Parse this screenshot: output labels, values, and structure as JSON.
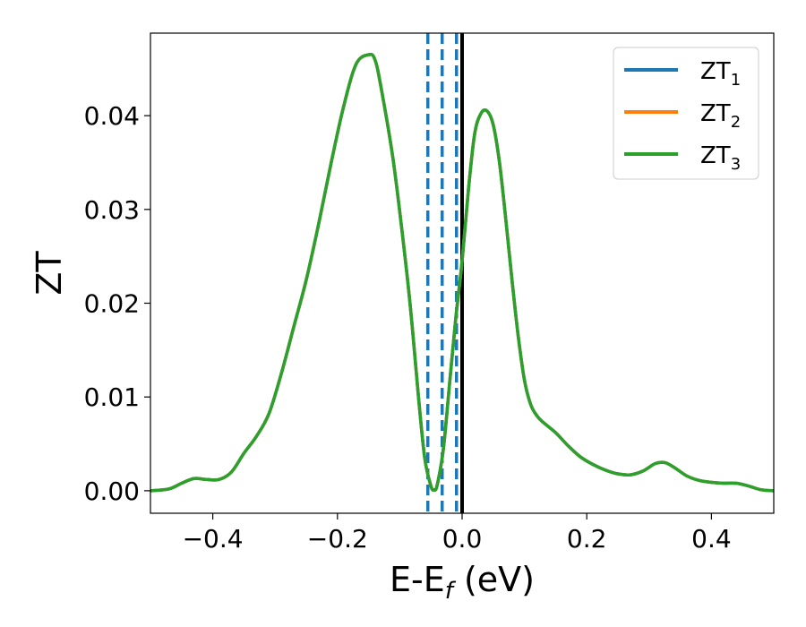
{
  "chart_data": {
    "type": "line",
    "xlabel": "E-E",
    "xlabel_sub": "f",
    "xlabel_unit": " (eV)",
    "ylabel": "ZT",
    "xlim": [
      -0.5,
      0.5
    ],
    "ylim": [
      -0.0024,
      0.0488
    ],
    "xticks": [
      -0.4,
      -0.2,
      0.0,
      0.2,
      0.4
    ],
    "xtick_labels": [
      "−0.4",
      "−0.2",
      "0.0",
      "0.2",
      "0.4"
    ],
    "yticks": [
      0.0,
      0.01,
      0.02,
      0.03,
      0.04
    ],
    "ytick_labels": [
      "0.00",
      "0.01",
      "0.02",
      "0.03",
      "0.04"
    ],
    "grid": false,
    "legend_position": "top-right",
    "x": [
      -0.5,
      -0.47,
      -0.45,
      -0.43,
      -0.41,
      -0.39,
      -0.37,
      -0.35,
      -0.33,
      -0.31,
      -0.29,
      -0.27,
      -0.25,
      -0.23,
      -0.21,
      -0.19,
      -0.17,
      -0.15,
      -0.14,
      -0.13,
      -0.11,
      -0.09,
      -0.08,
      -0.07,
      -0.06,
      -0.05,
      -0.045,
      -0.04,
      -0.03,
      -0.02,
      -0.01,
      0.0,
      0.01,
      0.02,
      0.03,
      0.04,
      0.05,
      0.06,
      0.07,
      0.08,
      0.09,
      0.1,
      0.11,
      0.12,
      0.13,
      0.15,
      0.17,
      0.19,
      0.21,
      0.23,
      0.25,
      0.27,
      0.29,
      0.31,
      0.325,
      0.34,
      0.36,
      0.38,
      0.4,
      0.42,
      0.44,
      0.46,
      0.48,
      0.5
    ],
    "series": [
      {
        "name": "ZT",
        "name_sub": "1",
        "color": "#1f77b4",
        "values": [
          0.0,
          0.0002,
          0.0008,
          0.0013,
          0.0012,
          0.0012,
          0.002,
          0.004,
          0.0058,
          0.0082,
          0.0125,
          0.0175,
          0.0225,
          0.0285,
          0.035,
          0.041,
          0.0455,
          0.0465,
          0.046,
          0.043,
          0.035,
          0.024,
          0.0175,
          0.01,
          0.0035,
          0.0005,
          0.0001,
          0.0006,
          0.0045,
          0.0115,
          0.0185,
          0.0245,
          0.032,
          0.038,
          0.0402,
          0.0405,
          0.039,
          0.035,
          0.029,
          0.0225,
          0.0165,
          0.0118,
          0.0092,
          0.008,
          0.0073,
          0.0062,
          0.0048,
          0.0036,
          0.0028,
          0.0022,
          0.0018,
          0.0017,
          0.0021,
          0.0029,
          0.003,
          0.0025,
          0.0016,
          0.0011,
          0.0009,
          0.0008,
          0.0008,
          0.0005,
          0.0001,
          0.0
        ]
      },
      {
        "name": "ZT",
        "name_sub": "2",
        "color": "#ff7f0e",
        "values": [
          0.0,
          0.0002,
          0.0008,
          0.0013,
          0.0012,
          0.0012,
          0.002,
          0.004,
          0.0058,
          0.0082,
          0.0125,
          0.0175,
          0.0225,
          0.0285,
          0.035,
          0.041,
          0.0455,
          0.0465,
          0.046,
          0.043,
          0.035,
          0.024,
          0.0175,
          0.01,
          0.0035,
          0.0005,
          0.0001,
          0.0006,
          0.0045,
          0.0115,
          0.0185,
          0.0245,
          0.032,
          0.038,
          0.0402,
          0.0405,
          0.039,
          0.035,
          0.029,
          0.0225,
          0.0165,
          0.0118,
          0.0092,
          0.008,
          0.0073,
          0.0062,
          0.0048,
          0.0036,
          0.0028,
          0.0022,
          0.0018,
          0.0017,
          0.0021,
          0.0029,
          0.003,
          0.0025,
          0.0016,
          0.0011,
          0.0009,
          0.0008,
          0.0008,
          0.0005,
          0.0001,
          0.0
        ]
      },
      {
        "name": "ZT",
        "name_sub": "3",
        "color": "#2ca02c",
        "values": [
          0.0,
          0.0002,
          0.0008,
          0.0013,
          0.0012,
          0.0012,
          0.002,
          0.004,
          0.0058,
          0.0082,
          0.0125,
          0.0175,
          0.0225,
          0.0285,
          0.035,
          0.041,
          0.0455,
          0.0465,
          0.046,
          0.043,
          0.035,
          0.024,
          0.0175,
          0.01,
          0.0035,
          0.0005,
          0.0001,
          0.0006,
          0.0045,
          0.0115,
          0.0185,
          0.0245,
          0.032,
          0.038,
          0.0402,
          0.0405,
          0.039,
          0.035,
          0.029,
          0.0225,
          0.0165,
          0.0118,
          0.0092,
          0.008,
          0.0073,
          0.0062,
          0.0048,
          0.0036,
          0.0028,
          0.0022,
          0.0018,
          0.0017,
          0.0021,
          0.0029,
          0.003,
          0.0025,
          0.0016,
          0.0011,
          0.0009,
          0.0008,
          0.0008,
          0.0005,
          0.0001,
          0.0
        ]
      }
    ],
    "vlines": [
      {
        "x": -0.055,
        "style": "dashed",
        "color": "#1f77b4"
      },
      {
        "x": -0.032,
        "style": "dashed",
        "color": "#1f77b4"
      },
      {
        "x": -0.009,
        "style": "dashed",
        "color": "#1f77b4"
      },
      {
        "x": 0.0,
        "style": "solid",
        "color": "#000000"
      }
    ]
  }
}
